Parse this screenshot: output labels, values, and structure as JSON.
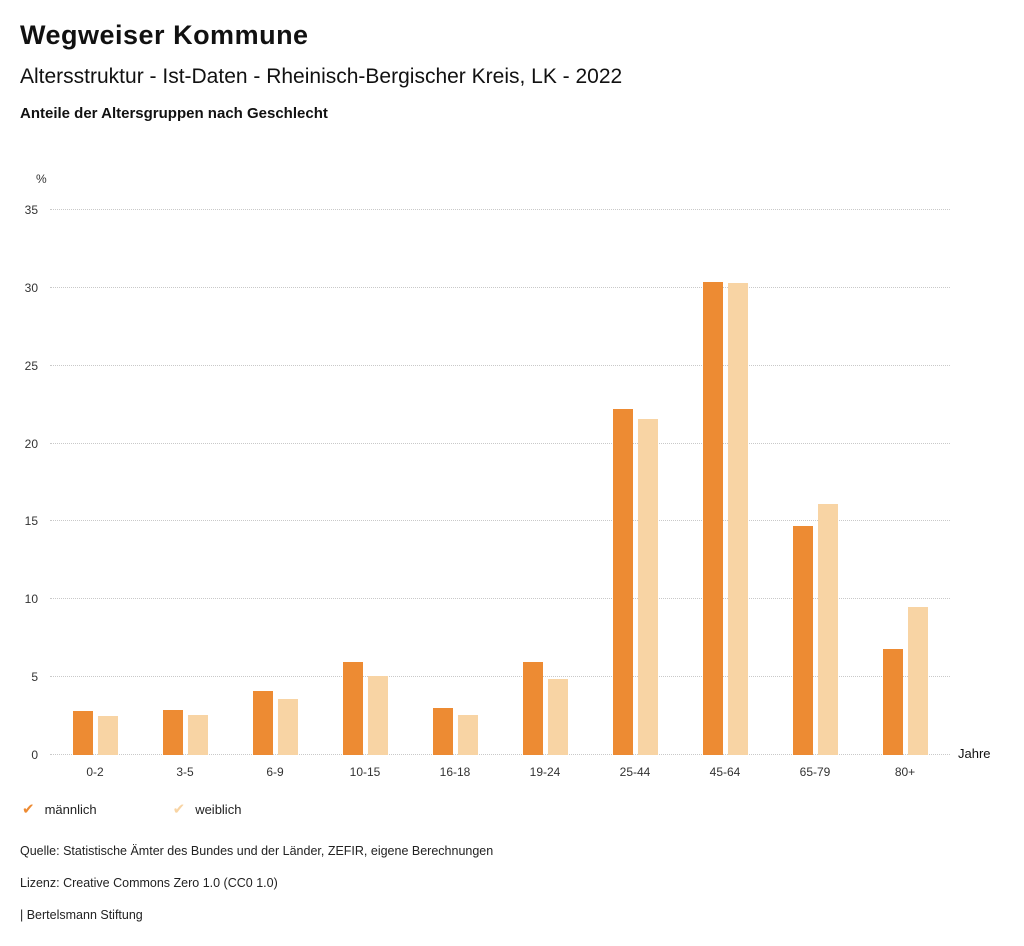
{
  "header": {
    "brand": "Wegweiser Kommune",
    "title": "Altersstruktur - Ist-Daten - Rheinisch-Bergischer Kreis, LK - 2022",
    "subtitle": "Anteile der Altersgruppen nach Geschlecht"
  },
  "colors": {
    "maennlich": "#ED8B33",
    "weiblich": "#F8D4A4",
    "gridline": "#c9c9c9"
  },
  "chart_data": {
    "type": "bar",
    "title": "Anteile der Altersgruppen nach Geschlecht",
    "unit_label": "%",
    "x_axis_label": "Jahre",
    "ylim": [
      0,
      35
    ],
    "ytick_step": 5,
    "yticks": [
      0,
      5,
      10,
      15,
      20,
      25,
      30,
      35
    ],
    "grid": "horizontal-dotted",
    "legend_position": "bottom-left",
    "categories": [
      "0-2",
      "3-5",
      "6-9",
      "10-15",
      "16-18",
      "19-24",
      "25-44",
      "45-64",
      "65-79",
      "80+"
    ],
    "series": [
      {
        "name": "männlich",
        "color": "#ED8B33",
        "values": [
          2.8,
          2.9,
          4.1,
          6.0,
          3.0,
          6.0,
          22.2,
          30.4,
          14.7,
          6.8
        ]
      },
      {
        "name": "weiblich",
        "color": "#F8D4A4",
        "values": [
          2.5,
          2.6,
          3.6,
          5.1,
          2.6,
          4.9,
          21.6,
          30.3,
          16.1,
          9.5
        ]
      }
    ]
  },
  "legend": {
    "items": [
      {
        "label": "männlich",
        "icon": "check-icon",
        "color": "#ED8B33"
      },
      {
        "label": "weiblich",
        "icon": "check-icon",
        "color": "#F8D4A4"
      }
    ],
    "check_glyph": "✔"
  },
  "footer": {
    "source": "Quelle: Statistische Ämter des Bundes und der Länder, ZEFIR, eigene Berechnungen",
    "license": "Lizenz: Creative Commons Zero 1.0 (CC0 1.0)",
    "attribution": "| Bertelsmann Stiftung"
  }
}
